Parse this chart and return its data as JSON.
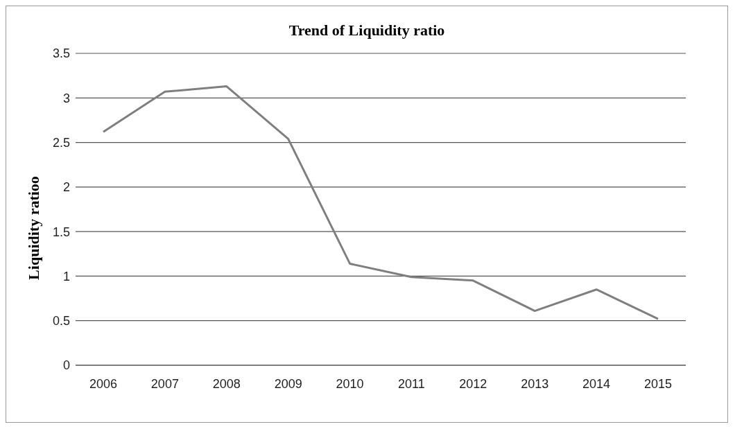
{
  "chart_data": {
    "type": "line",
    "title": "Trend of Liquidity ratio",
    "ylabel": "Liquidity ratioo",
    "categories": [
      "2006",
      "2007",
      "2008",
      "2009",
      "2010",
      "2011",
      "2012",
      "2013",
      "2014",
      "2015"
    ],
    "series": [
      {
        "color": "#7f7f7f",
        "values": [
          2.62,
          3.07,
          3.13,
          2.54,
          1.14,
          0.99,
          0.95,
          0.61,
          0.85,
          0.52
        ]
      }
    ],
    "ylim": [
      0,
      3.5
    ],
    "yticks": [
      0,
      0.5,
      1,
      1.5,
      2,
      2.5,
      3,
      3.5
    ],
    "grid": "y",
    "legend": false,
    "marker": "none",
    "line_style": "solid"
  }
}
